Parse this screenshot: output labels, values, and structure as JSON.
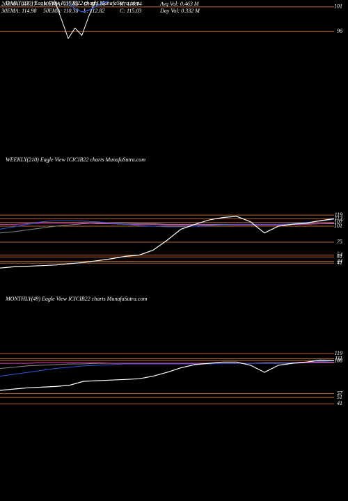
{
  "header": [
    [
      "20EMA: 115.17",
      "10EMA: 112.82",
      "O: 115.03",
      "H: 116.14",
      "Avg Vol: 0.463 M"
    ],
    [
      "30EMA: 114.98",
      "50EMA: 110.38",
      "L: 112.82",
      "C: 115.03",
      "Day Vol: 0.332 M"
    ]
  ],
  "chart_data": [
    {
      "type": "line",
      "title": "DAILY(230) Eagle  View  ICICIB22  charts MunafaSutra.com",
      "ylim": [
        72,
        102.4
      ],
      "yticks": [
        101,
        96
      ],
      "level_color": "#b5652a",
      "series": [
        {
          "color": "#ffffff",
          "values": [
            null,
            null,
            null,
            null,
            null,
            null,
            null,
            null,
            102.3,
            98.5,
            94.6,
            96.7,
            95.2,
            99.0,
            102.3,
            null,
            null,
            null,
            null,
            null,
            null,
            null,
            null,
            null,
            null,
            null,
            null,
            null,
            null,
            null,
            null,
            null,
            null,
            null,
            null,
            null,
            null,
            null,
            null,
            null,
            null,
            null,
            null,
            null,
            null,
            null,
            null,
            null,
            null,
            null
          ]
        },
        {
          "color": "#2f56d8",
          "values": [
            null,
            null,
            null,
            null,
            null,
            null,
            null,
            null,
            null,
            null,
            101.7,
            100.6,
            100.0,
            100.3,
            101.0,
            101.8,
            102.2,
            null,
            null,
            null,
            null,
            null,
            null,
            null,
            null,
            null,
            null,
            null,
            null,
            null,
            null,
            null,
            null,
            null,
            null,
            null,
            null,
            null,
            null,
            null,
            null,
            null,
            null,
            null,
            null,
            null,
            null,
            null,
            null,
            null
          ]
        }
      ]
    },
    {
      "type": "line",
      "title": "WEEKLY(210) Eagle  View  ICICIB22  charts MunafaSutra.com",
      "ylim": [
        5,
        214
      ],
      "yticks": [
        119,
        113,
        107,
        101,
        75,
        54,
        51,
        44,
        41
      ],
      "level_color": "#b5652a",
      "series": [
        {
          "color": "#8a8a8a",
          "values": [
            90,
            92,
            95,
            98,
            101,
            103,
            105,
            106,
            106,
            106,
            105,
            105,
            104,
            104,
            104,
            104,
            104,
            104,
            104,
            104,
            104,
            104,
            105,
            105,
            105
          ]
        },
        {
          "color": "#e040c0",
          "values": [
            104,
            104,
            105,
            106,
            106,
            106,
            106,
            105,
            105,
            104,
            104,
            104,
            103,
            103,
            103,
            103,
            103,
            103,
            103,
            103,
            103,
            104,
            104,
            105,
            106
          ]
        },
        {
          "color": "#2f56d8",
          "values": [
            96,
            100,
            104,
            108,
            110,
            110,
            109,
            108,
            106,
            104,
            102,
            101,
            100,
            100,
            101,
            102,
            103,
            104,
            104,
            104,
            104,
            105,
            107,
            109,
            112
          ]
        },
        {
          "color": "#ffffff",
          "values": [
            33,
            35,
            36,
            37,
            38,
            40,
            42,
            45,
            48,
            52,
            54,
            62,
            78,
            96,
            104,
            111,
            115,
            117,
            108,
            90,
            101,
            104,
            106,
            110,
            113
          ]
        }
      ]
    },
    {
      "type": "line",
      "title": "MONTHLY(49) Eagle  View  ICICIB22  charts MunafaSutra.com",
      "ylim": [
        9,
        209
      ],
      "yticks": [
        119,
        111,
        108,
        57,
        51,
        41
      ],
      "level_color": "#b5652a",
      "series": [
        {
          "color": "#8a8a8a",
          "values": [
            96,
            98,
            100,
            101,
            102,
            103,
            103,
            104,
            104,
            104,
            104,
            104,
            104,
            104,
            104,
            104,
            104,
            104,
            104,
            105,
            105,
            105,
            106,
            106,
            106
          ]
        },
        {
          "color": "#e040c0",
          "values": [
            104,
            104,
            104,
            105,
            105,
            105,
            105,
            105,
            104,
            104,
            104,
            104,
            104,
            104,
            104,
            104,
            104,
            104,
            104,
            104,
            104,
            104,
            105,
            105,
            105
          ]
        },
        {
          "color": "#2f56d8",
          "values": [
            84,
            87,
            90,
            93,
            96,
            98,
            100,
            101,
            102,
            103,
            103,
            103,
            103,
            103,
            103,
            103,
            104,
            104,
            104,
            104,
            104,
            105,
            106,
            107,
            108
          ]
        },
        {
          "color": "#ffffff",
          "values": [
            62,
            64,
            66,
            67,
            68,
            70,
            76,
            77,
            78,
            79,
            80,
            84,
            90,
            97,
            102,
            104,
            106,
            106,
            101,
            90,
            101,
            104,
            106,
            109,
            108
          ]
        }
      ]
    }
  ]
}
